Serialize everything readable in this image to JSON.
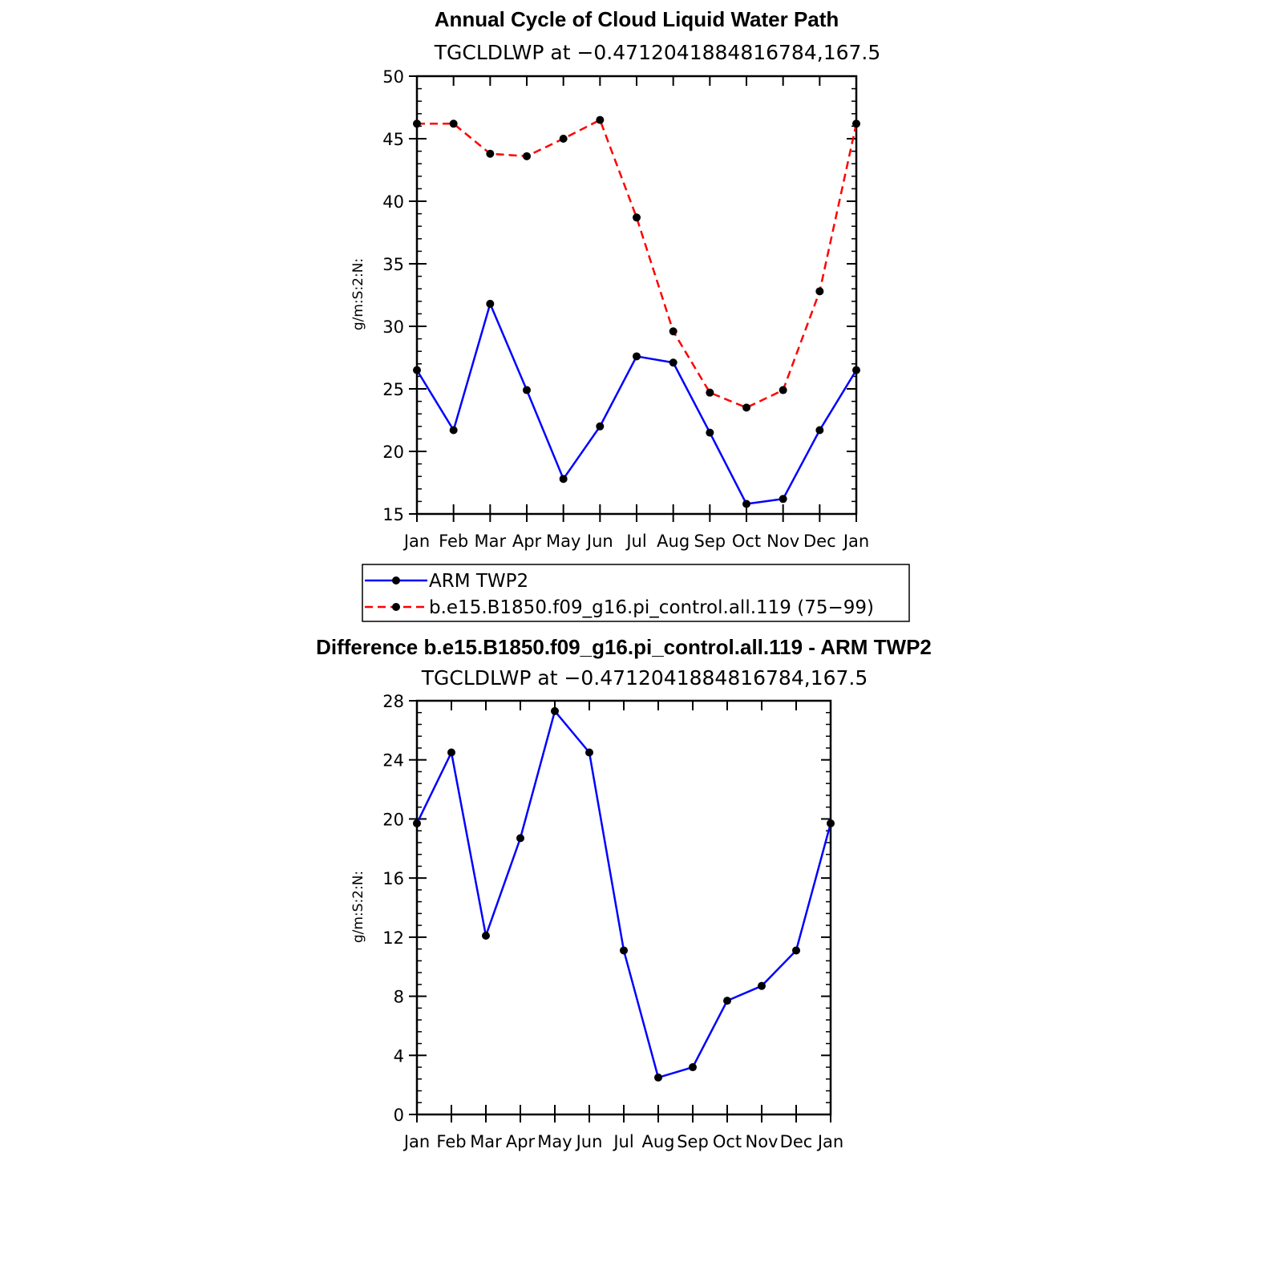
{
  "chart_data": [
    {
      "type": "line",
      "title": "Annual Cycle of Cloud Liquid Water Path",
      "subtitle": "TGCLDLWP at −0.4712041884816784,167.5",
      "ylabel": "g/m:S:2:N:",
      "xlabel": "",
      "categories": [
        "Jan",
        "Feb",
        "Mar",
        "Apr",
        "May",
        "Jun",
        "Jul",
        "Aug",
        "Sep",
        "Oct",
        "Nov",
        "Dec",
        "Jan"
      ],
      "ylim": [
        15,
        50
      ],
      "yticks": [
        15,
        20,
        25,
        30,
        35,
        40,
        45,
        50
      ],
      "grid": false,
      "legend": "bottom",
      "series": [
        {
          "name": "ARM TWP2",
          "color": "#0000ff",
          "dash": "solid",
          "values": [
            26.5,
            21.7,
            31.8,
            24.9,
            17.8,
            22.0,
            27.6,
            27.1,
            21.5,
            15.8,
            16.2,
            21.7,
            26.5
          ]
        },
        {
          "name": "b.e15.B1850.f09_g16.pi_control.all.119 (75−99)",
          "color": "#ff0000",
          "dash": "dashed",
          "values": [
            46.2,
            46.2,
            43.8,
            43.6,
            45.0,
            46.5,
            38.7,
            29.6,
            24.7,
            23.5,
            24.9,
            32.8,
            46.2
          ]
        }
      ]
    },
    {
      "type": "line",
      "title": "Difference b.e15.B1850.f09_g16.pi_control.all.119 - ARM TWP2",
      "subtitle": "TGCLDLWP at −0.4712041884816784,167.5",
      "ylabel": "g/m:S:2:N:",
      "xlabel": "",
      "categories": [
        "Jan",
        "Feb",
        "Mar",
        "Apr",
        "May",
        "Jun",
        "Jul",
        "Aug",
        "Sep",
        "Oct",
        "Nov",
        "Dec",
        "Jan"
      ],
      "ylim": [
        0,
        28
      ],
      "yticks": [
        0,
        4,
        8,
        12,
        16,
        20,
        24,
        28
      ],
      "grid": false,
      "legend": "none",
      "series": [
        {
          "color": "#0000ff",
          "dash": "solid",
          "values": [
            19.7,
            24.5,
            12.1,
            18.7,
            27.3,
            24.5,
            11.1,
            2.5,
            3.2,
            7.7,
            8.7,
            11.1,
            19.7
          ]
        }
      ]
    }
  ]
}
